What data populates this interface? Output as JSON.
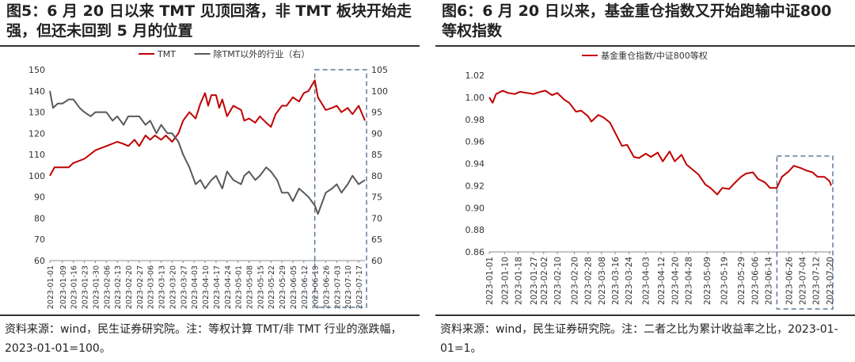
{
  "panels": [
    {
      "title": "图5：6 月 20 日以来 TMT 见顶回落，非 TMT 板块开始走强，但还未回到 5 月的位置",
      "source": "资料来源：wind，民生证券研究院。注：等权计算 TMT/非 TMT 行业的涨跌幅，2023-01-01=100。"
    },
    {
      "title": "图6：6 月 20 日以来，基金重仓指数又开始跑输中证800 等权指数",
      "source": "资料来源：wind，民生证券研究院。注：二者之比为累计收益率之比，2023-01-01=1。"
    }
  ],
  "colors": {
    "red": "#C00000",
    "gray": "#595959",
    "dash": "#5B7A99"
  },
  "chart_data": [
    {
      "type": "line",
      "title": "",
      "legend_position": "top",
      "x_tick_labels": [
        "2023-01-01",
        "2023-01-09",
        "2023-01-16",
        "2023-01-23",
        "2023-01-30",
        "2023-02-06",
        "2023-02-13",
        "2023-02-20",
        "2023-02-27",
        "2023-03-06",
        "2023-03-13",
        "2023-03-20",
        "2023-03-27",
        "2023-04-03",
        "2023-04-10",
        "2023-04-17",
        "2023-04-24",
        "2023-05-01",
        "2023-05-08",
        "2023-05-15",
        "2023-05-22",
        "2023-05-29",
        "2023-06-05",
        "2023-06-12",
        "2023-06-19",
        "2023-06-26",
        "2023-07-03",
        "2023-07-10",
        "2023-07-17"
      ],
      "y_left": {
        "min": 60,
        "max": 150,
        "ticks": [
          60,
          70,
          80,
          90,
          100,
          110,
          120,
          130,
          140,
          150
        ]
      },
      "y_right": {
        "min": 60,
        "max": 105,
        "ticks": [
          60,
          65,
          70,
          75,
          80,
          85,
          90,
          95,
          100,
          105
        ]
      },
      "highlight": {
        "from": "2023-06-20",
        "to": "2023-07-21"
      },
      "series": [
        {
          "name": "TMT",
          "axis": "left",
          "color": "#C00000",
          "points": [
            [
              "2023-01-01",
              100
            ],
            [
              "2023-01-04",
              104
            ],
            [
              "2023-01-09",
              104
            ],
            [
              "2023-01-13",
              104
            ],
            [
              "2023-01-16",
              106
            ],
            [
              "2023-01-23",
              108
            ],
            [
              "2023-01-30",
              112
            ],
            [
              "2023-02-06",
              114
            ],
            [
              "2023-02-13",
              116
            ],
            [
              "2023-02-17",
              115
            ],
            [
              "2023-02-20",
              114
            ],
            [
              "2023-02-24",
              117
            ],
            [
              "2023-02-27",
              114
            ],
            [
              "2023-03-03",
              119
            ],
            [
              "2023-03-06",
              117
            ],
            [
              "2023-03-09",
              119
            ],
            [
              "2023-03-13",
              117
            ],
            [
              "2023-03-16",
              119
            ],
            [
              "2023-03-20",
              116
            ],
            [
              "2023-03-24",
              120
            ],
            [
              "2023-03-27",
              126
            ],
            [
              "2023-03-31",
              130
            ],
            [
              "2023-04-04",
              127
            ],
            [
              "2023-04-07",
              134
            ],
            [
              "2023-04-10",
              139
            ],
            [
              "2023-04-12",
              133
            ],
            [
              "2023-04-14",
              138
            ],
            [
              "2023-04-17",
              138
            ],
            [
              "2023-04-19",
              132
            ],
            [
              "2023-04-21",
              136
            ],
            [
              "2023-04-24",
              128
            ],
            [
              "2023-04-28",
              133
            ],
            [
              "2023-05-03",
              131
            ],
            [
              "2023-05-05",
              126
            ],
            [
              "2023-05-08",
              127
            ],
            [
              "2023-05-12",
              125
            ],
            [
              "2023-05-15",
              128
            ],
            [
              "2023-05-19",
              125
            ],
            [
              "2023-05-22",
              123
            ],
            [
              "2023-05-25",
              129
            ],
            [
              "2023-05-29",
              133
            ],
            [
              "2023-06-01",
              133
            ],
            [
              "2023-06-05",
              137
            ],
            [
              "2023-06-09",
              135
            ],
            [
              "2023-06-12",
              139
            ],
            [
              "2023-06-15",
              140
            ],
            [
              "2023-06-19",
              145
            ],
            [
              "2023-06-21",
              137
            ],
            [
              "2023-06-26",
              131
            ],
            [
              "2023-06-30",
              132
            ],
            [
              "2023-07-03",
              133
            ],
            [
              "2023-07-06",
              130
            ],
            [
              "2023-07-10",
              132
            ],
            [
              "2023-07-13",
              129
            ],
            [
              "2023-07-17",
              133
            ],
            [
              "2023-07-21",
              126
            ]
          ]
        },
        {
          "name": "除TMT以外的行业（右）",
          "axis": "right",
          "color": "#595959",
          "points": [
            [
              "2023-01-01",
              100
            ],
            [
              "2023-01-03",
              96
            ],
            [
              "2023-01-06",
              97
            ],
            [
              "2023-01-09",
              97
            ],
            [
              "2023-01-13",
              98
            ],
            [
              "2023-01-16",
              98
            ],
            [
              "2023-01-20",
              96
            ],
            [
              "2023-01-23",
              95
            ],
            [
              "2023-01-27",
              94
            ],
            [
              "2023-01-30",
              95
            ],
            [
              "2023-02-03",
              95
            ],
            [
              "2023-02-06",
              95
            ],
            [
              "2023-02-10",
              93
            ],
            [
              "2023-02-13",
              94
            ],
            [
              "2023-02-17",
              92
            ],
            [
              "2023-02-20",
              94
            ],
            [
              "2023-02-24",
              94
            ],
            [
              "2023-02-27",
              94
            ],
            [
              "2023-03-03",
              92
            ],
            [
              "2023-03-06",
              93
            ],
            [
              "2023-03-10",
              90
            ],
            [
              "2023-03-13",
              92
            ],
            [
              "2023-03-17",
              90
            ],
            [
              "2023-03-20",
              90
            ],
            [
              "2023-03-24",
              88
            ],
            [
              "2023-03-27",
              85
            ],
            [
              "2023-03-31",
              82
            ],
            [
              "2023-04-04",
              78
            ],
            [
              "2023-04-07",
              79
            ],
            [
              "2023-04-10",
              77
            ],
            [
              "2023-04-14",
              79
            ],
            [
              "2023-04-17",
              80
            ],
            [
              "2023-04-21",
              77
            ],
            [
              "2023-04-24",
              81
            ],
            [
              "2023-04-28",
              79
            ],
            [
              "2023-05-03",
              78
            ],
            [
              "2023-05-05",
              80
            ],
            [
              "2023-05-08",
              81
            ],
            [
              "2023-05-12",
              79
            ],
            [
              "2023-05-15",
              80
            ],
            [
              "2023-05-19",
              82
            ],
            [
              "2023-05-22",
              81
            ],
            [
              "2023-05-26",
              79
            ],
            [
              "2023-05-29",
              76
            ],
            [
              "2023-06-02",
              76
            ],
            [
              "2023-06-05",
              74
            ],
            [
              "2023-06-09",
              77
            ],
            [
              "2023-06-12",
              76
            ],
            [
              "2023-06-15",
              75
            ],
            [
              "2023-06-19",
              73
            ],
            [
              "2023-06-21",
              71
            ],
            [
              "2023-06-26",
              76
            ],
            [
              "2023-06-30",
              77
            ],
            [
              "2023-07-03",
              78
            ],
            [
              "2023-07-06",
              76
            ],
            [
              "2023-07-10",
              78
            ],
            [
              "2023-07-13",
              80
            ],
            [
              "2023-07-17",
              78
            ],
            [
              "2023-07-21",
              79
            ]
          ]
        }
      ]
    },
    {
      "type": "line",
      "title": "",
      "legend_position": "top",
      "x_tick_labels": [
        "2023-01-01",
        "2023-01-10",
        "2023-01-18",
        "2023-01-27",
        "2023-02-02",
        "2023-02-10",
        "2023-02-20",
        "2023-02-28",
        "2023-03-08",
        "2023-03-16",
        "2023-03-24",
        "2023-04-03",
        "2023-04-12",
        "2023-04-20",
        "2023-04-28",
        "2023-05-09",
        "2023-05-19",
        "2023-05-29",
        "2023-06-06",
        "2023-06-14",
        "2023-06-26",
        "2023-07-04",
        "2023-07-12",
        "2023-07-20"
      ],
      "y_left": {
        "min": 0.86,
        "max": 1.02,
        "ticks": [
          0.86,
          0.88,
          0.9,
          0.92,
          0.94,
          0.96,
          0.98,
          1.0,
          1.02
        ]
      },
      "highlight": {
        "from": "2023-06-20",
        "to": "2023-07-21"
      },
      "series": [
        {
          "name": "基金重仓指数/中证800等权",
          "axis": "left",
          "color": "#C00000",
          "points": [
            [
              "2023-01-01",
              1.0
            ],
            [
              "2023-01-03",
              0.995
            ],
            [
              "2023-01-05",
              1.003
            ],
            [
              "2023-01-09",
              1.006
            ],
            [
              "2023-01-12",
              1.004
            ],
            [
              "2023-01-16",
              1.003
            ],
            [
              "2023-01-19",
              1.005
            ],
            [
              "2023-01-27",
              1.003
            ],
            [
              "2023-01-31",
              1.005
            ],
            [
              "2023-02-03",
              1.006
            ],
            [
              "2023-02-07",
              1.002
            ],
            [
              "2023-02-10",
              1.004
            ],
            [
              "2023-02-14",
              0.998
            ],
            [
              "2023-02-17",
              0.995
            ],
            [
              "2023-02-21",
              0.987
            ],
            [
              "2023-02-24",
              0.988
            ],
            [
              "2023-02-28",
              0.983
            ],
            [
              "2023-03-02",
              0.978
            ],
            [
              "2023-03-06",
              0.984
            ],
            [
              "2023-03-09",
              0.982
            ],
            [
              "2023-03-13",
              0.977
            ],
            [
              "2023-03-16",
              0.968
            ],
            [
              "2023-03-20",
              0.956
            ],
            [
              "2023-03-23",
              0.957
            ],
            [
              "2023-03-27",
              0.946
            ],
            [
              "2023-03-30",
              0.945
            ],
            [
              "2023-04-03",
              0.949
            ],
            [
              "2023-04-06",
              0.946
            ],
            [
              "2023-04-10",
              0.95
            ],
            [
              "2023-04-13",
              0.942
            ],
            [
              "2023-04-17",
              0.951
            ],
            [
              "2023-04-20",
              0.942
            ],
            [
              "2023-04-24",
              0.948
            ],
            [
              "2023-04-27",
              0.939
            ],
            [
              "2023-05-04",
              0.93
            ],
            [
              "2023-05-08",
              0.921
            ],
            [
              "2023-05-11",
              0.918
            ],
            [
              "2023-05-15",
              0.912
            ],
            [
              "2023-05-18",
              0.918
            ],
            [
              "2023-05-22",
              0.917
            ],
            [
              "2023-05-25",
              0.922
            ],
            [
              "2023-05-29",
              0.928
            ],
            [
              "2023-06-01",
              0.931
            ],
            [
              "2023-06-05",
              0.932
            ],
            [
              "2023-06-08",
              0.926
            ],
            [
              "2023-06-12",
              0.923
            ],
            [
              "2023-06-15",
              0.918
            ],
            [
              "2023-06-19",
              0.918
            ],
            [
              "2023-06-22",
              0.928
            ],
            [
              "2023-06-26",
              0.933
            ],
            [
              "2023-06-29",
              0.938
            ],
            [
              "2023-07-03",
              0.936
            ],
            [
              "2023-07-06",
              0.934
            ],
            [
              "2023-07-10",
              0.932
            ],
            [
              "2023-07-13",
              0.928
            ],
            [
              "2023-07-17",
              0.928
            ],
            [
              "2023-07-20",
              0.924
            ],
            [
              "2023-07-21",
              0.92
            ]
          ]
        }
      ]
    }
  ]
}
